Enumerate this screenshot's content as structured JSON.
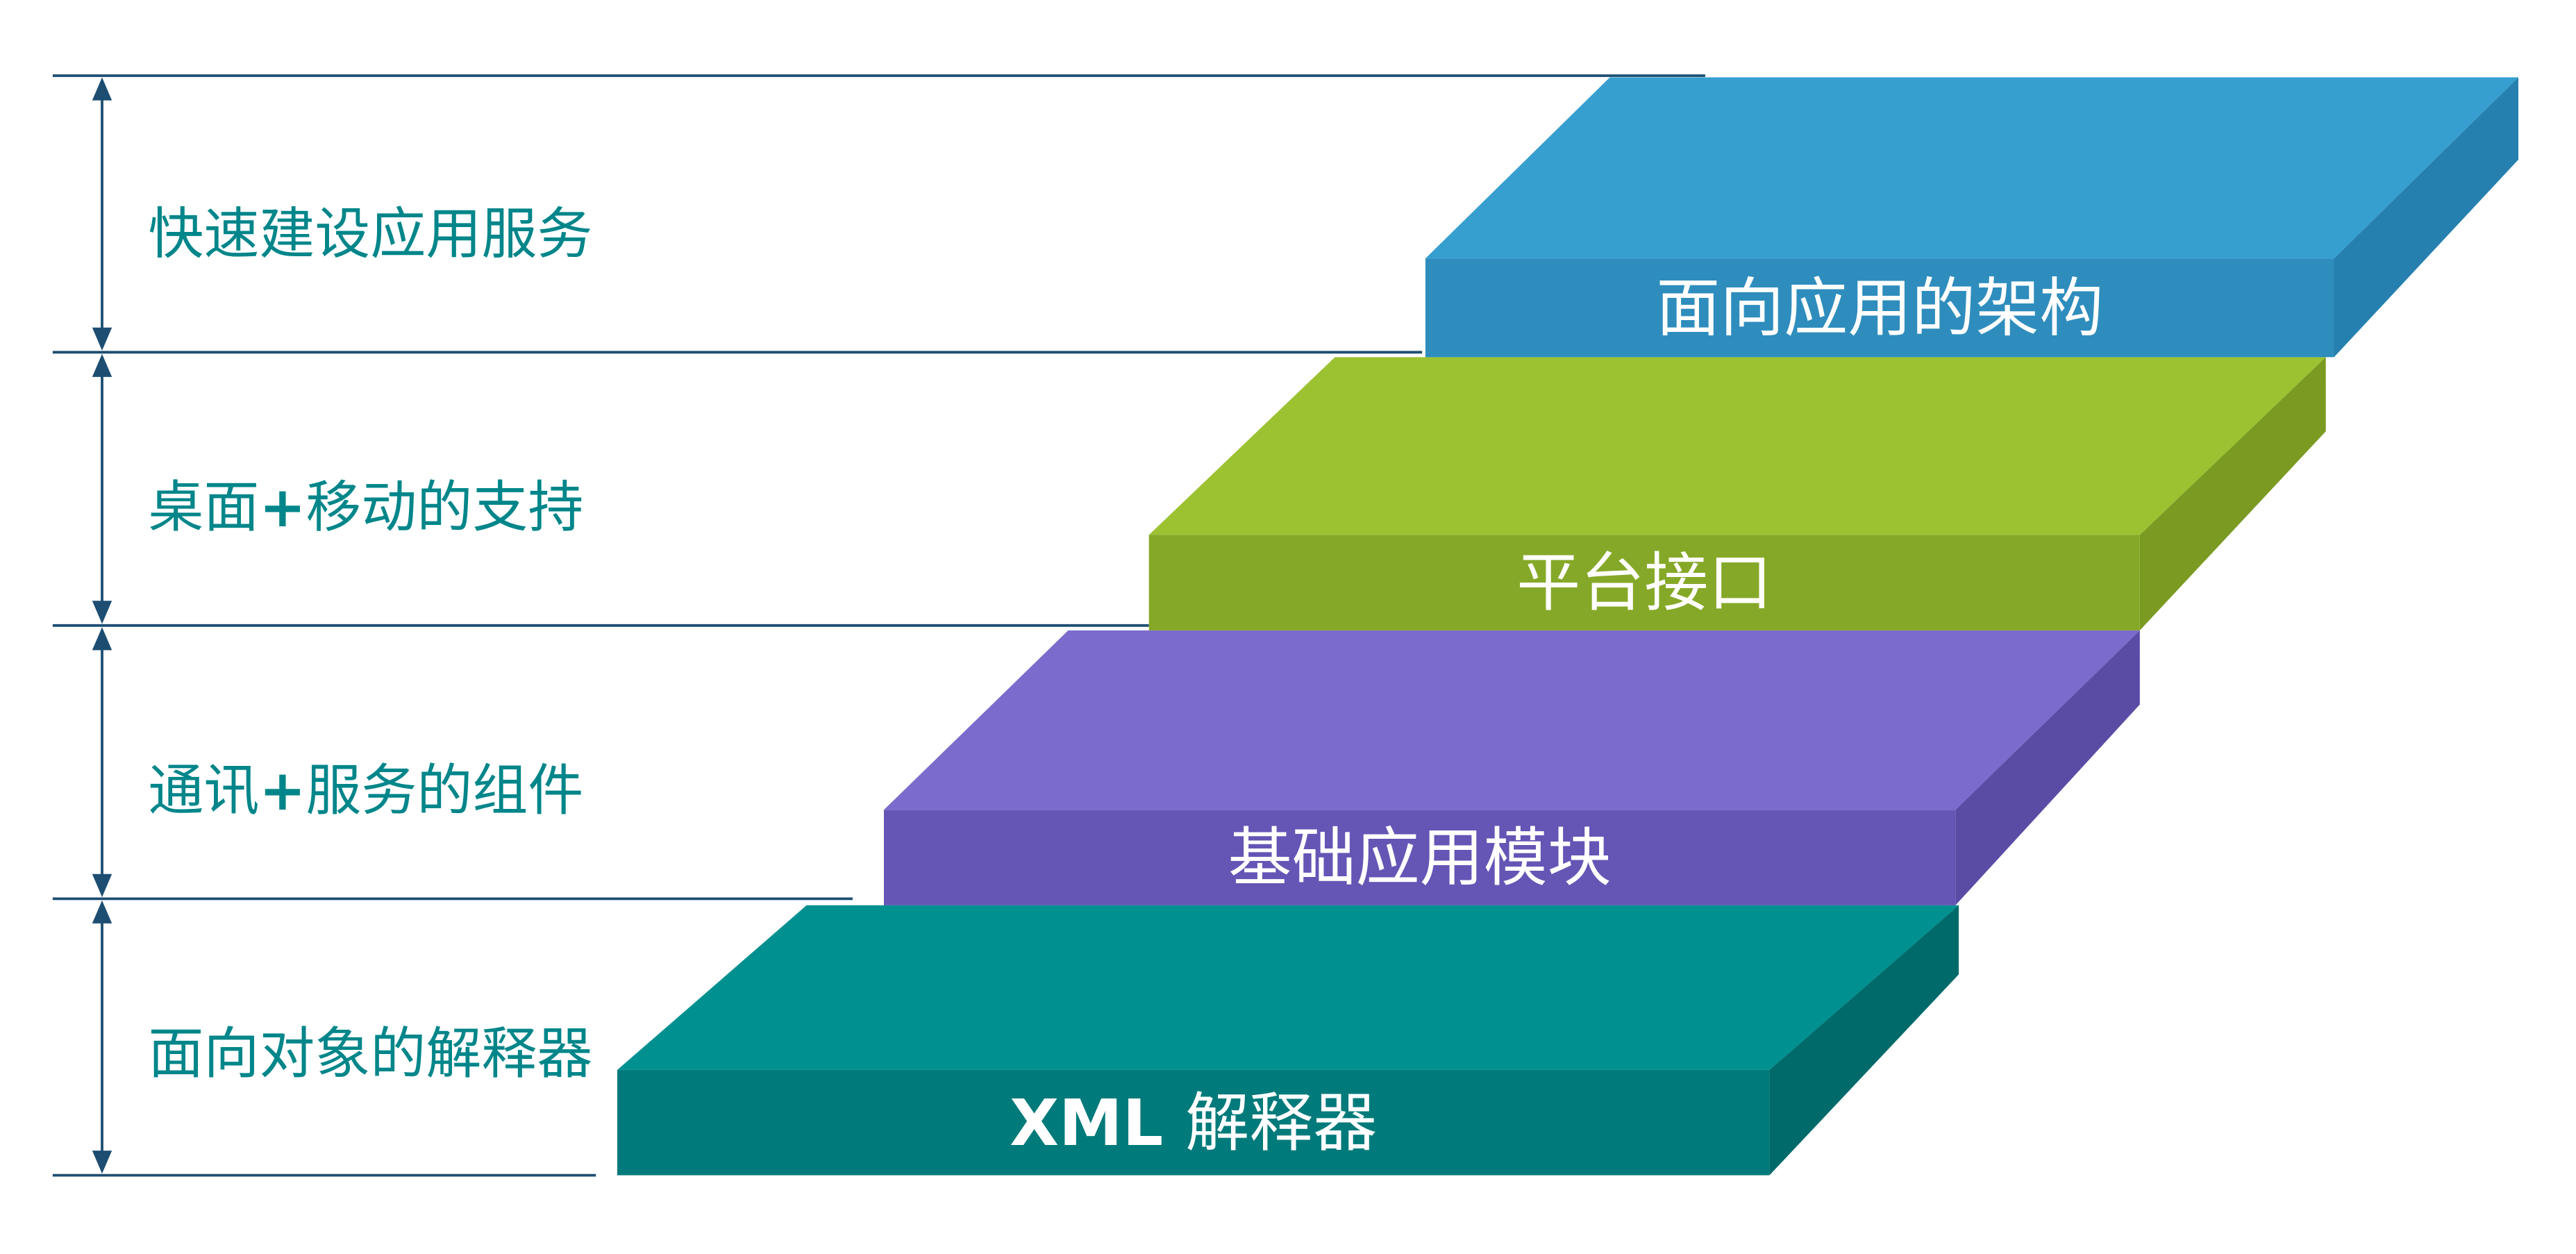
{
  "levels": [
    {
      "description": "面向对象的解释器",
      "step_label_bold": "XML",
      "step_label": "解释器",
      "colors": {
        "top": "#009090",
        "front": "#007a7a",
        "side": "#006a6a"
      }
    },
    {
      "description": "通讯+服务的组件",
      "step_label_bold": "",
      "step_label": "基础应用模块",
      "colors": {
        "top": "#7b6bcc",
        "front": "#6555b5",
        "side": "#5a4ca5"
      }
    },
    {
      "description": "桌面+移动的支持",
      "step_label_bold": "",
      "step_label": "平台接口",
      "colors": {
        "top": "#9cc232",
        "front": "#86a828",
        "side": "#7a9a22"
      }
    },
    {
      "description": "快速建设应用服务",
      "step_label_bold": "",
      "step_label": "面向应用的架构",
      "colors": {
        "top": "#379fd0",
        "front": "#2e8dbd",
        "side": "#2580b0"
      }
    }
  ],
  "style": {
    "description_color": "#00868a",
    "line_color": "#1d4e72",
    "step_text_color": "#ffffff"
  }
}
